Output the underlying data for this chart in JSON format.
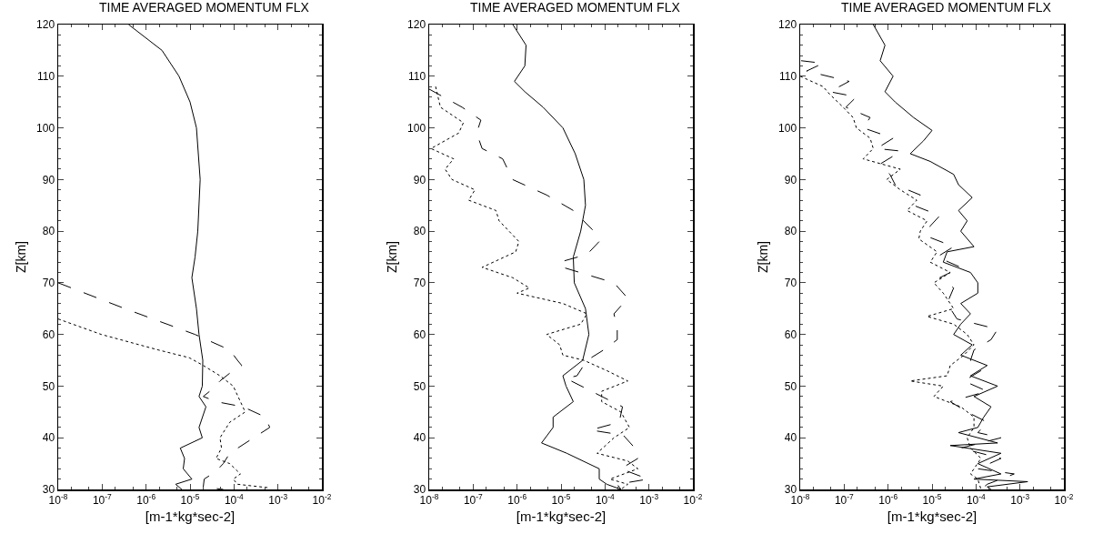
{
  "chart_data": [
    {
      "type": "line",
      "title": "TIME AVERAGED MOMENTUM FLX",
      "xlabel": "[m-1*kg*sec-2]",
      "ylabel": "Z[km]",
      "log": "x",
      "grid": false,
      "marker": "none",
      "xlim": [
        1e-08,
        0.01
      ],
      "xticks": [
        {
          "value": 1e-08,
          "label": "10$^{-8}$"
        },
        {
          "value": 1e-07,
          "label": "10$^{-7}$"
        },
        {
          "value": 1e-06,
          "label": "10$^{-6}$"
        },
        {
          "value": 1e-05,
          "label": "10$^{-5}$"
        },
        {
          "value": 0.0001,
          "label": "10$^{-4}$"
        },
        {
          "value": 0.001,
          "label": "10$^{-3}$"
        },
        {
          "value": 0.01,
          "label": "10$^{-2}$"
        }
      ],
      "ylim": [
        30,
        120
      ],
      "yticks": [
        30,
        40,
        50,
        60,
        70,
        80,
        90,
        100,
        110,
        120
      ],
      "series": [
        {
          "color": "#000000",
          "line_style": "solid",
          "x": [
            4e-07,
            2.3e-06,
            5.6e-06,
            1e-05,
            1.4e-05,
            1.7e-05,
            1.5e-05,
            1.3e-05,
            1.1e-05,
            1.4e-05,
            1.6e-05,
            1.95e-05,
            1.9e-05,
            1.6e-05,
            2.3e-05,
            1.6e-05,
            1.9e-05,
            6e-06,
            7.5e-06,
            7e-06,
            1.1e-05,
            4.7e-06,
            6.5e-06
          ],
          "values": [
            120,
            115,
            110,
            105,
            100,
            90,
            80,
            75,
            71,
            65,
            60,
            55,
            50,
            48,
            46,
            42,
            40,
            38,
            36,
            34,
            32,
            31,
            30
          ]
        },
        {
          "color": "#000000",
          "line_style": "dashed",
          "x": [
            1e-08,
            3.3e-07,
            1.3e-05,
            8e-05,
            0.00012,
            0.00015,
            8e-05,
            4.8e-05,
            2.8e-05,
            2e-05,
            3.9e-05,
            0.00016,
            0.00052,
            0.00065,
            0.00028,
            8e-05,
            5.7e-05,
            3.9e-05,
            2.1e-05,
            2e-05,
            5.7e-05
          ],
          "values": [
            70,
            65,
            60,
            57,
            55,
            54,
            52.5,
            51,
            49,
            48,
            47,
            46,
            44,
            42,
            40,
            37,
            35,
            33.5,
            32,
            30.5,
            30
          ]
        },
        {
          "color": "#000000",
          "line_style": "dotted",
          "x": [
            1e-08,
            9.6e-08,
            1.9e-06,
            9.6e-06,
            2e-05,
            4.8e-05,
            9.6e-05,
            0.00014,
            0.00018,
            8e-05,
            4.8e-05,
            5.2e-05,
            3.9e-05,
            8e-05,
            0.00014,
            9.6e-05,
            0.00012,
            0.00065
          ],
          "values": [
            63,
            60,
            57,
            55.5,
            54,
            52,
            50,
            47,
            45,
            43,
            40,
            38,
            36,
            35,
            33,
            32,
            31,
            30.3
          ]
        }
      ]
    },
    {
      "type": "line",
      "title": "TIME AVERAGED MOMENTUM FLX",
      "xlabel": "[m-1*kg*sec-2]",
      "ylabel": "Z[km]",
      "log": "x",
      "grid": false,
      "marker": "none",
      "xlim": [
        1e-08,
        0.01
      ],
      "xticks": [
        {
          "value": 1e-08,
          "label": "10$^{-8}$"
        },
        {
          "value": 1e-07,
          "label": "10$^{-7}$"
        },
        {
          "value": 1e-06,
          "label": "10$^{-6}$"
        },
        {
          "value": 1e-05,
          "label": "10$^{-5}$"
        },
        {
          "value": 0.0001,
          "label": "10$^{-4}$"
        },
        {
          "value": 0.001,
          "label": "10$^{-3}$"
        },
        {
          "value": 0.01,
          "label": "10$^{-2}$"
        }
      ],
      "ylim": [
        30,
        120
      ],
      "yticks": [
        30,
        40,
        50,
        60,
        70,
        80,
        90,
        100,
        110,
        120
      ],
      "series": [
        {
          "color": "#000000",
          "line_style": "solid",
          "x": [
            8e-07,
            1.6e-06,
            1.5e-06,
            8.7e-07,
            1.5e-06,
            3.9e-06,
            1.1e-05,
            2.1e-05,
            3.3e-05,
            3.6e-05,
            2.8e-05,
            1.9e-05,
            2e-05,
            3.6e-05,
            4.3e-05,
            3.1e-05,
            1.1e-05,
            1.3e-05,
            1.9e-05,
            6.6e-06,
            6.6e-06,
            3.6e-06,
            1.35e-05,
            7.4e-05,
            7.4e-05,
            0.00011,
            0.00023
          ],
          "values": [
            120,
            116,
            112,
            109,
            107,
            104,
            100,
            95,
            90,
            85,
            80,
            75,
            70,
            65,
            60,
            55,
            52,
            50,
            47,
            44,
            42,
            39,
            37,
            34,
            32,
            31,
            30
          ]
        },
        {
          "color": "#000000",
          "line_style": "dashed",
          "x": [
            1e-08,
            5.6e-08,
            1.5e-07,
            1.2e-07,
            1.6e-07,
            4.7e-07,
            7.9e-07,
            4.7e-06,
            1.9e-05,
            5.6e-05,
            7.4e-05,
            3.9e-05,
            9.3e-06,
            1.1e-05,
            0.00016,
            0.00033,
            0.00016,
            0.00019,
            0.00019,
            9.3e-05,
            3.9e-05,
            2.3e-05,
            1.3e-05,
            8.4e-05,
            0.00025,
            0.00021,
            4.7e-05,
            0.00026,
            0.00048,
            0.00056,
            0.00023,
            0.00096,
            0.00019,
            0.00023
          ],
          "values": [
            107.5,
            104,
            101.5,
            99,
            96,
            94,
            90,
            87,
            84,
            80,
            78,
            75.5,
            74,
            73,
            70,
            67,
            64,
            61,
            59,
            57,
            55,
            52,
            51.5,
            48,
            46,
            43,
            41.5,
            40.5,
            38,
            36,
            34,
            32,
            31,
            30
          ]
        },
        {
          "color": "#000000",
          "line_style": "dotted",
          "x": [
            1.4e-08,
            1.8e-08,
            6e-08,
            4.7e-08,
            1.1e-08,
            3.6e-08,
            2.3e-08,
            3.3e-08,
            1.1e-07,
            7.9e-08,
            3.3e-07,
            3.9e-07,
            1.1e-06,
            9.3e-07,
            1.6e-07,
            7.9e-07,
            1.9e-06,
            1e-06,
            1.1e-05,
            3.9e-05,
            2.8e-05,
            4.7e-06,
            9.3e-06,
            1.1e-05,
            3.3e-05,
            0.00011,
            0.00033,
            8.4e-05,
            8.4e-05,
            0.00023,
            0.00036,
            0.00016,
            6.6e-05,
            0.00033,
            0.00056,
            0.00013,
            0.00033,
            0.00023
          ],
          "values": [
            108,
            104,
            101,
            99,
            96,
            94,
            92,
            90,
            88,
            86,
            84,
            82,
            78,
            76,
            73,
            71,
            69,
            68,
            66,
            64,
            62,
            60,
            58,
            56,
            55,
            53,
            51,
            49,
            47,
            45,
            42,
            40,
            37,
            35.5,
            34,
            32,
            31,
            30
          ]
        }
      ]
    },
    {
      "type": "line",
      "title": "TIME AVERAGED MOMENTUM FLX",
      "xlabel": "[m-1*kg*sec-2]",
      "ylabel": "Z[km]",
      "log": "x",
      "grid": false,
      "marker": "none",
      "xlim": [
        1e-08,
        0.01
      ],
      "xticks": [
        {
          "value": 1e-08,
          "label": "10$^{-8}$"
        },
        {
          "value": 1e-07,
          "label": "10$^{-7}$"
        },
        {
          "value": 1e-06,
          "label": "10$^{-6}$"
        },
        {
          "value": 1e-05,
          "label": "10$^{-5}$"
        },
        {
          "value": 0.0001,
          "label": "10$^{-4}$"
        },
        {
          "value": 0.001,
          "label": "10$^{-3}$"
        },
        {
          "value": 0.01,
          "label": "10$^{-2}$"
        }
      ],
      "ylim": [
        30,
        120
      ],
      "yticks": [
        30,
        40,
        50,
        60,
        70,
        80,
        90,
        100,
        110,
        120
      ],
      "series": [
        {
          "color": "#000000",
          "line_style": "solid",
          "x": [
            4.6e-07,
            8.5e-07,
            6.6e-07,
            1.3e-06,
            8.5e-07,
            1.45e-06,
            3.8e-06,
            1e-05,
            6.4e-06,
            3.2e-06,
            9.1e-06,
            3.1e-05,
            4e-05,
            8.2e-05,
            4e-05,
            6.3e-05,
            4.5e-05,
            9e-05,
            2.2e-05,
            1.8e-05,
            7.5e-05,
            0.00011,
            0.00011,
            4.5e-05,
            7.5e-05,
            4.5e-05,
            3.1e-05,
            8.2e-05,
            4.5e-05,
            0.00018,
            7.5e-05,
            0.00031,
            9e-05,
            0.00022,
            0.00015,
            0.00011,
            4e-05,
            0.00031,
            2.6e-05,
            0.00037,
            0.00011,
            0.00037,
            9e-05,
            0.0015,
            0.00018,
            0.00022
          ],
          "values": [
            120,
            116,
            113,
            110,
            107,
            105,
            102,
            99.5,
            97.5,
            95,
            93.5,
            91,
            89,
            86.5,
            84,
            82,
            80,
            77,
            76,
            74,
            72,
            70,
            68,
            66,
            64,
            62,
            60,
            58,
            56,
            54,
            52,
            50,
            48,
            46,
            44,
            42,
            41,
            39,
            38.5,
            37,
            35,
            33,
            32,
            31.5,
            30.5,
            30
          ]
        },
        {
          "color": "#000000",
          "line_style": "dashed",
          "x": [
            1.05e-08,
            3.3e-08,
            1.4e-08,
            1.3e-07,
            4.7e-08,
            1.9e-07,
            1.1e-07,
            3.9e-07,
            2.7e-07,
            1.3e-06,
            5.5e-07,
            2e-06,
            6.6e-07,
            1.1e-06,
            1.45e-06,
            5.4e-06,
            3.8e-06,
            1.5e-05,
            9.1e-06,
            7.7e-06,
            3.1e-05,
            1.3e-05,
            4.5e-05,
            1.5e-05,
            3.1e-05,
            2.2e-05,
            3.7e-05,
            0.00031,
            0.00022,
            9e-05,
            7.5e-05,
            0.00013,
            5.3e-05,
            0.00018,
            2.6e-05,
            6.3e-05,
            0.00018,
            0.00011,
            0.00037,
            4.5e-05,
            0.00037,
            0.00011,
            0.00074,
            0.00018,
            0.00013
          ],
          "values": [
            113,
            112.5,
            111,
            109,
            107,
            106,
            104,
            102,
            100,
            98,
            96,
            95.5,
            93,
            91,
            89,
            87,
            85,
            83,
            81,
            79,
            77,
            75,
            73,
            71,
            69,
            66,
            63,
            61,
            59,
            57,
            55,
            53,
            51,
            49,
            47,
            45,
            43,
            41,
            40,
            38,
            36,
            34,
            33,
            31,
            30
          ]
        },
        {
          "color": "#000000",
          "line_style": "dotted",
          "x": [
            1e-08,
            3.3e-08,
            4.7e-08,
            9.5e-08,
            1.6e-07,
            1.9e-07,
            3.9e-07,
            4.6e-07,
            2.7e-07,
            1.9e-06,
            9.3e-07,
            1.9e-06,
            4.5e-06,
            2.7e-06,
            7.7e-06,
            5.4e-06,
            5e-06,
            1.3e-05,
            9.1e-06,
            2.6e-05,
            1.1e-05,
            1.8e-05,
            3.1e-05,
            7.7e-06,
            3.1e-05,
            6.3e-05,
            9e-05,
            5.3e-05,
            2.6e-05,
            2.2e-05,
            3.2e-06,
            1.8e-05,
            1.1e-05,
            4.5e-05,
            9e-05,
            9e-05,
            6.3e-05,
            7.5e-05,
            0.00013,
            9e-05,
            7.5e-05,
            0.00011,
            0.00013
          ],
          "values": [
            110,
            108,
            106.5,
            104,
            102,
            100,
            98,
            96,
            94,
            92,
            90,
            88,
            86,
            84,
            82,
            80,
            78.5,
            76,
            74,
            72,
            70,
            68,
            65,
            63.5,
            62,
            60,
            58,
            56,
            54,
            52,
            51,
            50,
            48,
            46,
            44,
            42,
            40,
            38,
            36,
            34,
            33,
            32,
            30
          ]
        }
      ]
    }
  ]
}
